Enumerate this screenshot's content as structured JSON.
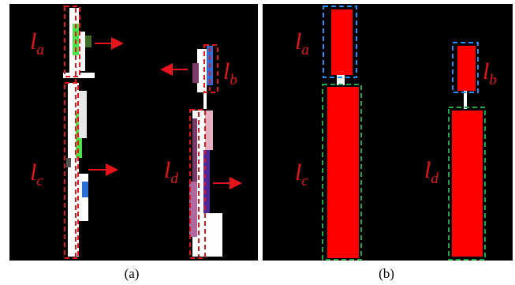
{
  "panels": [
    {
      "caption": "(a)",
      "labels": [
        {
          "main": "l",
          "sub": "a"
        },
        {
          "main": "l",
          "sub": "b"
        },
        {
          "main": "l",
          "sub": "c"
        },
        {
          "main": "l",
          "sub": "d"
        }
      ]
    },
    {
      "caption": "(b)",
      "labels": [
        {
          "main": "l",
          "sub": "a"
        },
        {
          "main": "l",
          "sub": "b"
        },
        {
          "main": "l",
          "sub": "c"
        },
        {
          "main": "l",
          "sub": "d"
        }
      ]
    }
  ]
}
